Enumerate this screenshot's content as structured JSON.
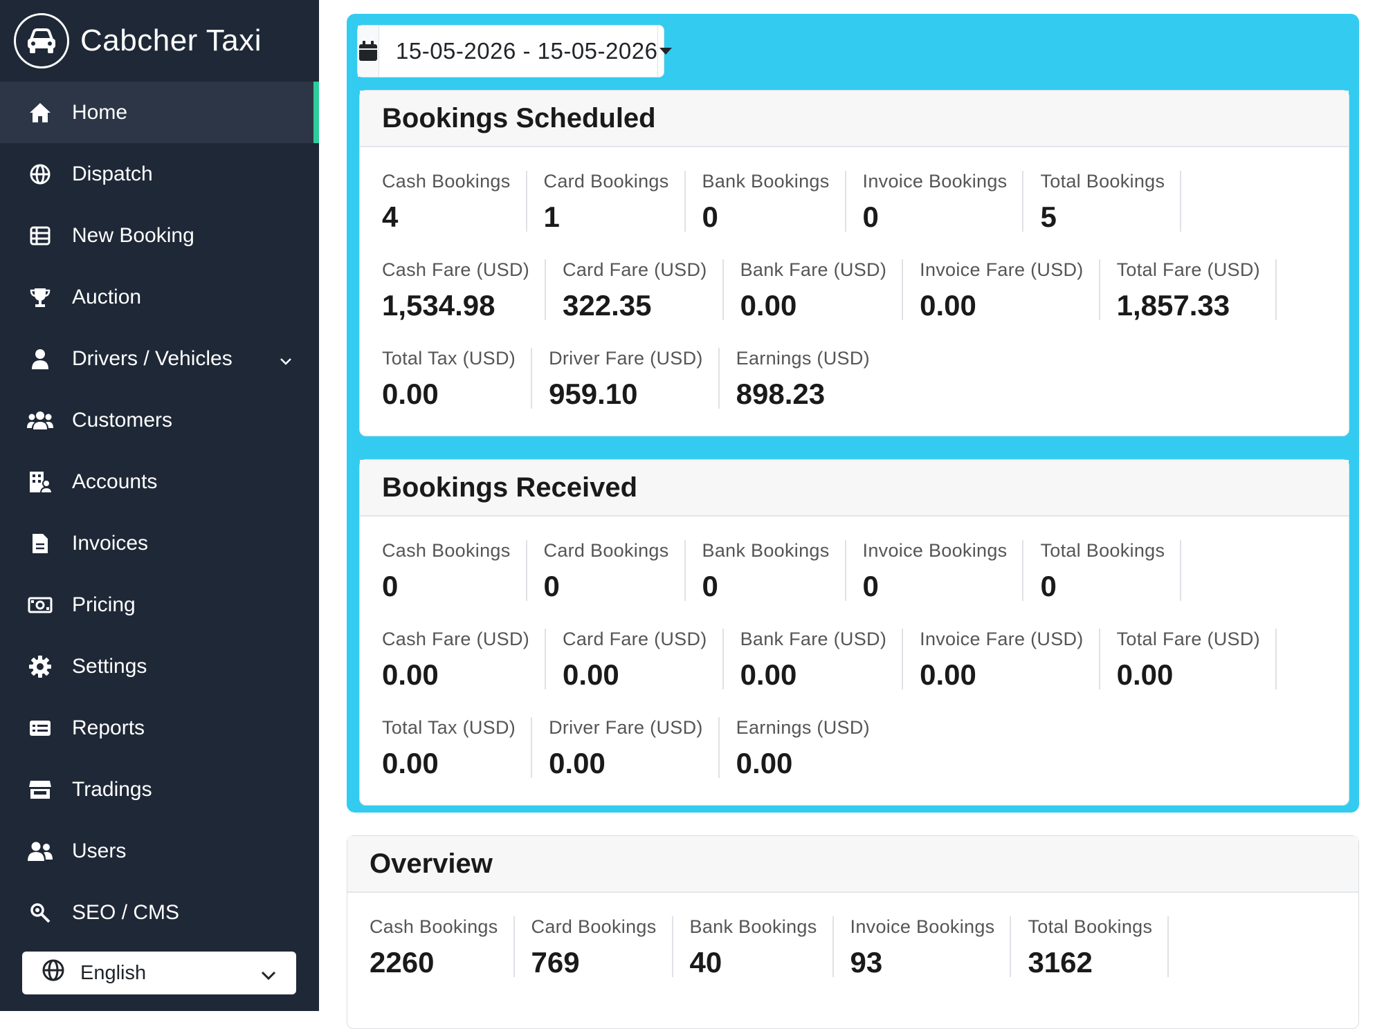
{
  "brand": {
    "name": "Cabcher Taxi",
    "logo_icon": "car-icon"
  },
  "sidebar": {
    "items": [
      {
        "label": "Home",
        "icon": "home-icon",
        "active": true
      },
      {
        "label": "Dispatch",
        "icon": "globe-icon"
      },
      {
        "label": "New Booking",
        "icon": "list-icon"
      },
      {
        "label": "Auction",
        "icon": "trophy-icon"
      },
      {
        "label": "Drivers / Vehicles",
        "icon": "driver-icon",
        "has_submenu": true
      },
      {
        "label": "Customers",
        "icon": "customers-icon"
      },
      {
        "label": "Accounts",
        "icon": "accounts-icon"
      },
      {
        "label": "Invoices",
        "icon": "invoice-icon"
      },
      {
        "label": "Pricing",
        "icon": "money-icon"
      },
      {
        "label": "Settings",
        "icon": "gear-icon"
      },
      {
        "label": "Reports",
        "icon": "report-icon"
      },
      {
        "label": "Tradings",
        "icon": "store-icon"
      },
      {
        "label": "Users",
        "icon": "users-icon"
      },
      {
        "label": "SEO / CMS",
        "icon": "search-gear-icon"
      }
    ],
    "language": {
      "selected": "English",
      "icon": "globe-icon"
    }
  },
  "date_range": {
    "value": "15-05-2026 - 15-05-2026",
    "icon": "calendar-icon"
  },
  "colors": {
    "sidebar_bg": "#1f2837",
    "accent": "#33ccf0",
    "active_marker": "#2ecc9a"
  },
  "scheduled": {
    "title": "Bookings Scheduled",
    "cash_bookings_label": "Cash Bookings",
    "cash_bookings": "4",
    "card_bookings_label": "Card Bookings",
    "card_bookings": "1",
    "bank_bookings_label": "Bank Bookings",
    "bank_bookings": "0",
    "invoice_bookings_label": "Invoice Bookings",
    "invoice_bookings": "0",
    "total_bookings_label": "Total Bookings",
    "total_bookings": "5",
    "cash_fare_label": "Cash Fare (USD)",
    "cash_fare": "1,534.98",
    "card_fare_label": "Card Fare (USD)",
    "card_fare": "322.35",
    "bank_fare_label": "Bank Fare (USD)",
    "bank_fare": "0.00",
    "invoice_fare_label": "Invoice Fare (USD)",
    "invoice_fare": "0.00",
    "total_fare_label": "Total Fare (USD)",
    "total_fare": "1,857.33",
    "total_tax_label": "Total Tax (USD)",
    "total_tax": "0.00",
    "driver_fare_label": "Driver Fare (USD)",
    "driver_fare": "959.10",
    "earnings_label": "Earnings (USD)",
    "earnings": "898.23"
  },
  "received": {
    "title": "Bookings Received",
    "cash_bookings_label": "Cash Bookings",
    "cash_bookings": "0",
    "card_bookings_label": "Card Bookings",
    "card_bookings": "0",
    "bank_bookings_label": "Bank Bookings",
    "bank_bookings": "0",
    "invoice_bookings_label": "Invoice Bookings",
    "invoice_bookings": "0",
    "total_bookings_label": "Total Bookings",
    "total_bookings": "0",
    "cash_fare_label": "Cash Fare (USD)",
    "cash_fare": "0.00",
    "card_fare_label": "Card Fare (USD)",
    "card_fare": "0.00",
    "bank_fare_label": "Bank Fare (USD)",
    "bank_fare": "0.00",
    "invoice_fare_label": "Invoice Fare (USD)",
    "invoice_fare": "0.00",
    "total_fare_label": "Total Fare (USD)",
    "total_fare": "0.00",
    "total_tax_label": "Total Tax (USD)",
    "total_tax": "0.00",
    "driver_fare_label": "Driver Fare (USD)",
    "driver_fare": "0.00",
    "earnings_label": "Earnings (USD)",
    "earnings": "0.00"
  },
  "overview": {
    "title": "Overview",
    "cash_bookings_label": "Cash Bookings",
    "cash_bookings": "2260",
    "card_bookings_label": "Card Bookings",
    "card_bookings": "769",
    "bank_bookings_label": "Bank Bookings",
    "bank_bookings": "40",
    "invoice_bookings_label": "Invoice Bookings",
    "invoice_bookings": "93",
    "total_bookings_label": "Total Bookings",
    "total_bookings": "3162"
  }
}
